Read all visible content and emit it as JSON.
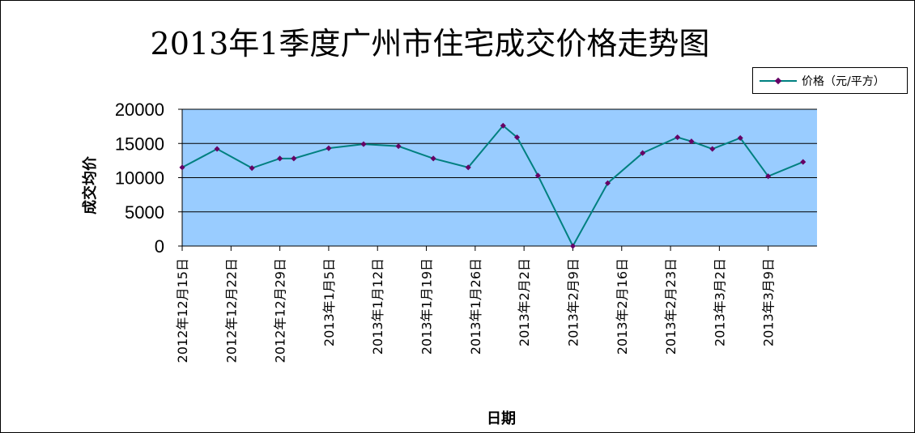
{
  "chart_data": {
    "type": "line",
    "title": "2013年1季度广州市住宅成交价格走势图",
    "xlabel": "日期",
    "ylabel": "成交均价",
    "ylim": [
      0,
      20000
    ],
    "yticks": [
      "20000",
      "15000",
      "10000",
      "5000",
      "0"
    ],
    "tick_labels": [
      "2012年12月15日",
      "2012年12月22日",
      "2012年12月29日",
      "2013年1月5日",
      "2013年1月12日",
      "2013年1月19日",
      "2013年1月26日",
      "2013年2月2日",
      "2013年2月9日",
      "2013年2月16日",
      "2013年2月23日",
      "2013年3月2日",
      "2013年3月9日"
    ],
    "series": [
      {
        "name": "价格（元/平方）",
        "color": "#008080",
        "marker_color": "#660066",
        "points": [
          {
            "x": "2012-12-15",
            "y": 11500
          },
          {
            "x": "2012-12-20",
            "y": 14200
          },
          {
            "x": "2012-12-25",
            "y": 11400
          },
          {
            "x": "2012-12-29",
            "y": 12800
          },
          {
            "x": "2012-12-31",
            "y": 12800
          },
          {
            "x": "2013-01-05",
            "y": 14300
          },
          {
            "x": "2013-01-10",
            "y": 14900
          },
          {
            "x": "2013-01-15",
            "y": 14600
          },
          {
            "x": "2013-01-20",
            "y": 12800
          },
          {
            "x": "2013-01-25",
            "y": 11500
          },
          {
            "x": "2013-01-30",
            "y": 17600
          },
          {
            "x": "2013-02-01",
            "y": 15900
          },
          {
            "x": "2013-02-04",
            "y": 10300
          },
          {
            "x": "2013-02-09",
            "y": 0
          },
          {
            "x": "2013-02-14",
            "y": 9200
          },
          {
            "x": "2013-02-19",
            "y": 13600
          },
          {
            "x": "2013-02-24",
            "y": 15900
          },
          {
            "x": "2013-02-26",
            "y": 15300
          },
          {
            "x": "2013-03-01",
            "y": 14200
          },
          {
            "x": "2013-03-05",
            "y": 15800
          },
          {
            "x": "2013-03-09",
            "y": 10200
          },
          {
            "x": "2013-03-14",
            "y": 12300
          }
        ]
      }
    ],
    "grid": true,
    "legend_position": "top-right",
    "plot_background": "#99CCFF"
  }
}
